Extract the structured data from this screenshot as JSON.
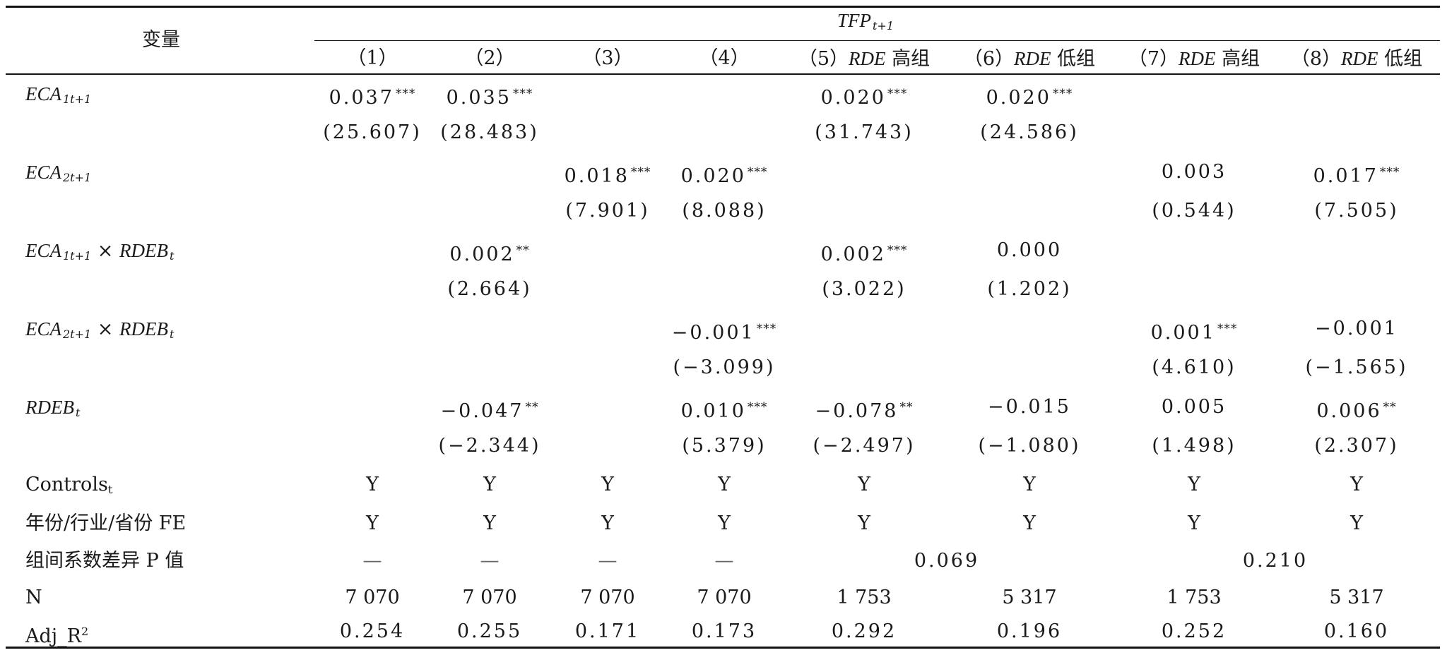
{
  "table": {
    "var_header": "变量",
    "group_header": "TFP",
    "group_header_sub": "t+1",
    "columns": [
      "（1）",
      "（2）",
      "（3）",
      "（4）",
      "（5）",
      "（6）",
      "（7）",
      "（8）"
    ],
    "column_suffix": {
      "rde": "RDE",
      "high": "高组",
      "low": "低组"
    },
    "rows": {
      "eca1": {
        "label": "ECA",
        "sub": "1t+1",
        "coef": [
          "0.037",
          "0.035",
          "",
          "",
          "0.020",
          "0.020",
          "",
          ""
        ],
        "stars": [
          "***",
          "***",
          "",
          "",
          "***",
          "***",
          "",
          ""
        ],
        "t": [
          "(25.607)",
          "(28.483)",
          "",
          "",
          "(31.743)",
          "(24.586)",
          "",
          ""
        ]
      },
      "eca2": {
        "label": "ECA",
        "sub": "2t+1",
        "coef": [
          "",
          "",
          "0.018",
          "0.020",
          "",
          "",
          "0.003",
          "0.017"
        ],
        "stars": [
          "",
          "",
          "***",
          "***",
          "",
          "",
          "",
          "***"
        ],
        "t": [
          "",
          "",
          "(7.901)",
          "(8.088)",
          "",
          "",
          "(0.544)",
          "(7.505)"
        ]
      },
      "eca1_x": {
        "label": "ECA",
        "sub": "1t+1",
        "times": " × ",
        "label2": "RDEB",
        "sub2": "t",
        "coef": [
          "",
          "0.002",
          "",
          "",
          "0.002",
          "0.000",
          "",
          ""
        ],
        "stars": [
          "",
          "**",
          "",
          "",
          "***",
          "",
          "",
          ""
        ],
        "t": [
          "",
          "(2.664)",
          "",
          "",
          "(3.022)",
          "(1.202)",
          "",
          ""
        ]
      },
      "eca2_x": {
        "label": "ECA",
        "sub": "2t+1",
        "times": " × ",
        "label2": "RDEB",
        "sub2": "t",
        "coef": [
          "",
          "",
          "",
          "−0.001",
          "",
          "",
          "0.001",
          "−0.001"
        ],
        "stars": [
          "",
          "",
          "",
          "***",
          "",
          "",
          "***",
          ""
        ],
        "t": [
          "",
          "",
          "",
          "(−3.099)",
          "",
          "",
          "(4.610)",
          "(−1.565)"
        ]
      },
      "rdeb": {
        "label": "RDEB",
        "sub": "t",
        "coef": [
          "",
          "−0.047",
          "",
          "0.010",
          "−0.078",
          "−0.015",
          "0.005",
          "0.006"
        ],
        "stars": [
          "",
          "**",
          "",
          "***",
          "**",
          "",
          "",
          "**"
        ],
        "t": [
          "",
          "(−2.344)",
          "",
          "(5.379)",
          "(−2.497)",
          "(−1.080)",
          "(1.498)",
          "(2.307)"
        ]
      }
    },
    "controls": {
      "label": "Controls",
      "sub": "t",
      "values": [
        "Y",
        "Y",
        "Y",
        "Y",
        "Y",
        "Y",
        "Y",
        "Y"
      ]
    },
    "fe": {
      "label": "年份/行业/省份 FE",
      "values": [
        "Y",
        "Y",
        "Y",
        "Y",
        "Y",
        "Y",
        "Y",
        "Y"
      ]
    },
    "pdiff": {
      "label": "组间系数差异 P 值",
      "dashes": [
        "—",
        "—",
        "—",
        "—"
      ],
      "p56": "0.069",
      "p78": "0.210"
    },
    "n": {
      "label": "N",
      "values": [
        "7 070",
        "7 070",
        "7 070",
        "7 070",
        "1 753",
        "5 317",
        "1 753",
        "5 317"
      ]
    },
    "adj": {
      "label": "Adj_R",
      "sup": "2",
      "values": [
        "0.254",
        "0.255",
        "0.171",
        "0.173",
        "0.292",
        "0.196",
        "0.252",
        "0.160"
      ]
    }
  }
}
